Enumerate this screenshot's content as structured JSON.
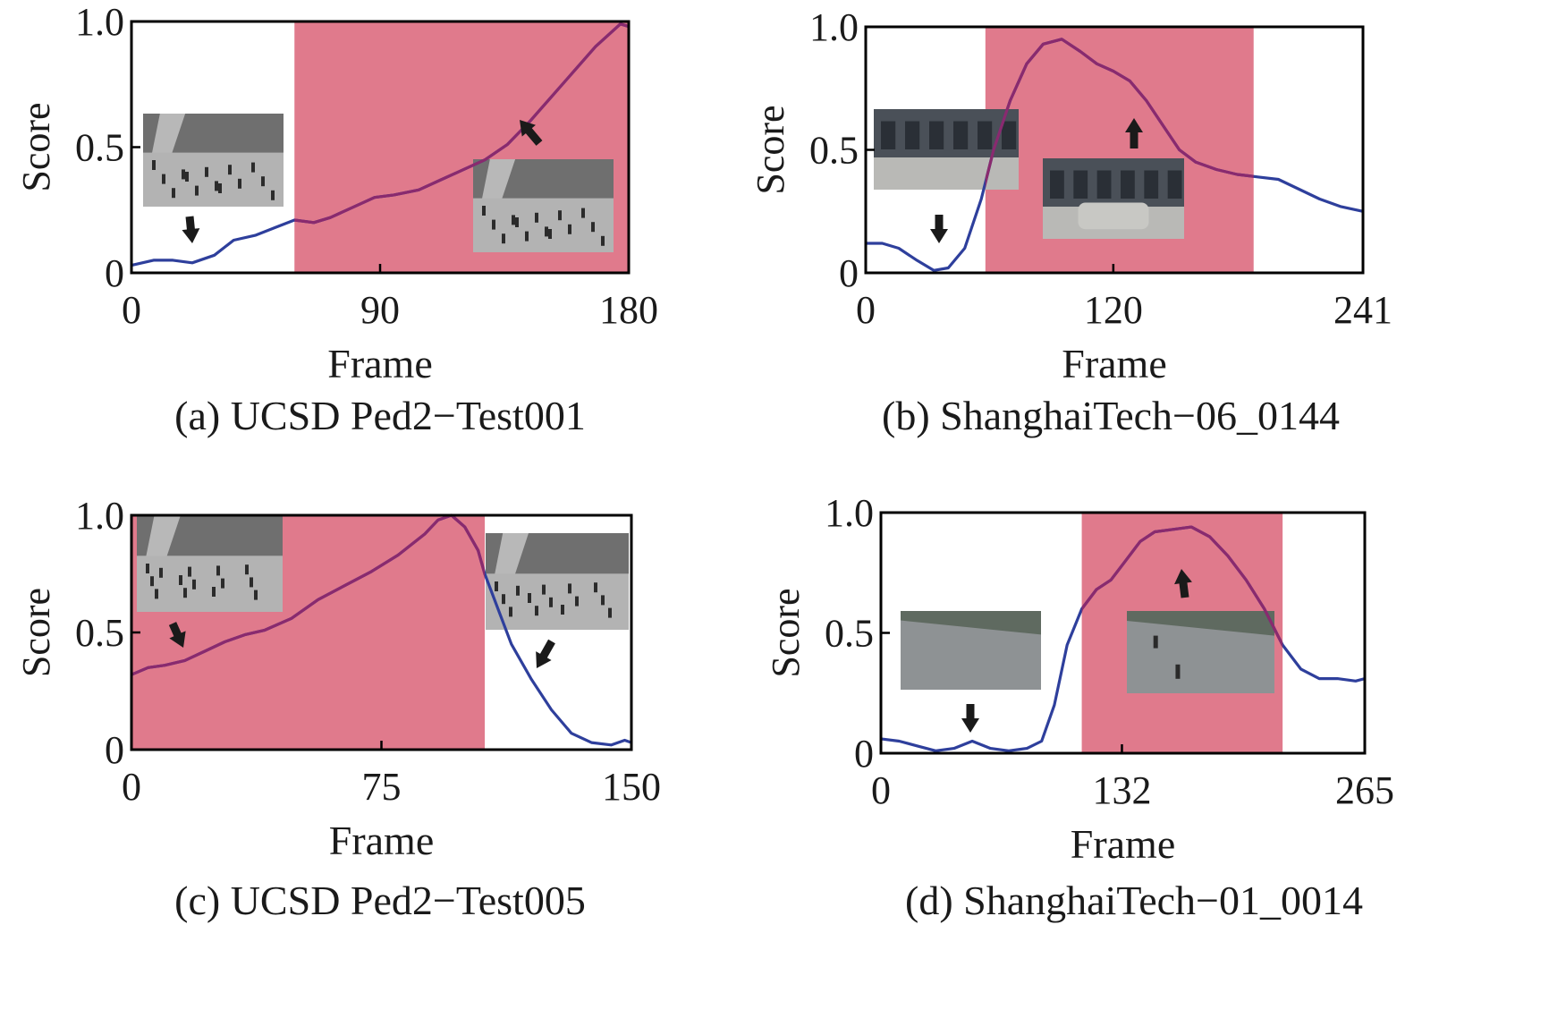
{
  "colors": {
    "curve": "#2e3f9c",
    "curve_in_region": "#8a2a6e",
    "anomaly_region": "#e07a8c",
    "axis": "#000000",
    "arrow": "#1a1a1a"
  },
  "chart_data": [
    {
      "type": "line",
      "caption": "(a) UCSD Ped2−Test001",
      "xlabel": "Frame",
      "ylabel": "Score",
      "xlim": [
        0,
        180
      ],
      "ylim": [
        0,
        1
      ],
      "xticks": [
        0,
        90,
        180
      ],
      "yticks": [
        0,
        0.5,
        1.0
      ],
      "ytick_labels": [
        "0",
        "0.5",
        "1.0"
      ],
      "anomaly_region": [
        59,
        180
      ],
      "series": [
        {
          "x": [
            0,
            8,
            15,
            22,
            30,
            37,
            45,
            52,
            59,
            66,
            72,
            80,
            88,
            95,
            104,
            112,
            120,
            128,
            136,
            144,
            152,
            160,
            168,
            174,
            177,
            180
          ],
          "values": [
            0.03,
            0.05,
            0.05,
            0.04,
            0.07,
            0.13,
            0.15,
            0.18,
            0.21,
            0.2,
            0.22,
            0.26,
            0.3,
            0.31,
            0.33,
            0.37,
            0.41,
            0.45,
            0.51,
            0.6,
            0.7,
            0.8,
            0.9,
            0.96,
            0.99,
            0.98
          ]
        }
      ],
      "insets": [
        {
          "icon": "ped2-normal-frame",
          "arrow": "down"
        },
        {
          "icon": "ped2-anomaly-frame",
          "arrow": "up-left"
        }
      ]
    },
    {
      "type": "line",
      "caption": "(b) ShanghaiTech−06_0144",
      "xlabel": "Frame",
      "ylabel": "Score",
      "xlim": [
        0,
        241
      ],
      "ylim": [
        0,
        1
      ],
      "xticks": [
        0,
        120,
        241
      ],
      "yticks": [
        0,
        0.5,
        1.0
      ],
      "ytick_labels": [
        "0",
        "0.5",
        "1.0"
      ],
      "anomaly_region": [
        58,
        188
      ],
      "series": [
        {
          "x": [
            0,
            8,
            16,
            25,
            33,
            40,
            48,
            56,
            62,
            70,
            78,
            86,
            95,
            104,
            112,
            120,
            128,
            136,
            144,
            152,
            160,
            170,
            180,
            190,
            200,
            210,
            220,
            230,
            241
          ],
          "values": [
            0.12,
            0.12,
            0.1,
            0.05,
            0.01,
            0.02,
            0.1,
            0.3,
            0.5,
            0.7,
            0.85,
            0.93,
            0.95,
            0.9,
            0.85,
            0.82,
            0.78,
            0.7,
            0.6,
            0.5,
            0.45,
            0.42,
            0.4,
            0.39,
            0.38,
            0.34,
            0.3,
            0.27,
            0.25
          ]
        }
      ],
      "insets": [
        {
          "icon": "campus-normal-frame",
          "arrow": "down"
        },
        {
          "icon": "campus-car-frame",
          "arrow": "up"
        }
      ]
    },
    {
      "type": "line",
      "caption": "(c) UCSD Ped2−Test005",
      "xlabel": "Frame",
      "ylabel": "Score",
      "xlim": [
        0,
        150
      ],
      "ylim": [
        0,
        1
      ],
      "xticks": [
        0,
        75,
        150
      ],
      "yticks": [
        0,
        0.5,
        1.0
      ],
      "ytick_labels": [
        "0",
        "0.5",
        "1.0"
      ],
      "anomaly_region": [
        0,
        106
      ],
      "series": [
        {
          "x": [
            0,
            5,
            10,
            16,
            22,
            28,
            34,
            40,
            48,
            56,
            64,
            72,
            80,
            88,
            92,
            96,
            100,
            104,
            106,
            110,
            114,
            120,
            126,
            132,
            138,
            144,
            148,
            150
          ],
          "values": [
            0.32,
            0.35,
            0.36,
            0.38,
            0.42,
            0.46,
            0.49,
            0.51,
            0.56,
            0.64,
            0.7,
            0.76,
            0.83,
            0.92,
            0.98,
            1.0,
            0.95,
            0.85,
            0.75,
            0.6,
            0.45,
            0.3,
            0.17,
            0.07,
            0.03,
            0.02,
            0.04,
            0.03
          ]
        }
      ],
      "insets": [
        {
          "icon": "ped2-anomaly-frame",
          "arrow": "down-right"
        },
        {
          "icon": "ped2-normal-frame",
          "arrow": "down-left"
        }
      ]
    },
    {
      "type": "line",
      "caption": "(d) ShanghaiTech−01_0014",
      "xlabel": "Frame",
      "ylabel": "Score",
      "xlim": [
        0,
        265
      ],
      "ylim": [
        0,
        1
      ],
      "xticks": [
        0,
        132,
        265
      ],
      "yticks": [
        0,
        0.5,
        1.0
      ],
      "ytick_labels": [
        "0",
        "0.5",
        "1.0"
      ],
      "anomaly_region": [
        110,
        220
      ],
      "series": [
        {
          "x": [
            0,
            10,
            20,
            30,
            40,
            50,
            60,
            70,
            80,
            88,
            95,
            102,
            110,
            118,
            126,
            134,
            142,
            150,
            160,
            170,
            180,
            190,
            200,
            210,
            220,
            230,
            240,
            250,
            260,
            265
          ],
          "values": [
            0.06,
            0.05,
            0.03,
            0.01,
            0.02,
            0.05,
            0.02,
            0.01,
            0.02,
            0.05,
            0.2,
            0.45,
            0.6,
            0.68,
            0.72,
            0.8,
            0.88,
            0.92,
            0.93,
            0.94,
            0.9,
            0.82,
            0.72,
            0.6,
            0.45,
            0.35,
            0.31,
            0.31,
            0.3,
            0.31
          ]
        }
      ],
      "insets": [
        {
          "icon": "plaza-normal-frame",
          "arrow": "down"
        },
        {
          "icon": "plaza-cyclist-frame",
          "arrow": "up"
        }
      ]
    }
  ]
}
